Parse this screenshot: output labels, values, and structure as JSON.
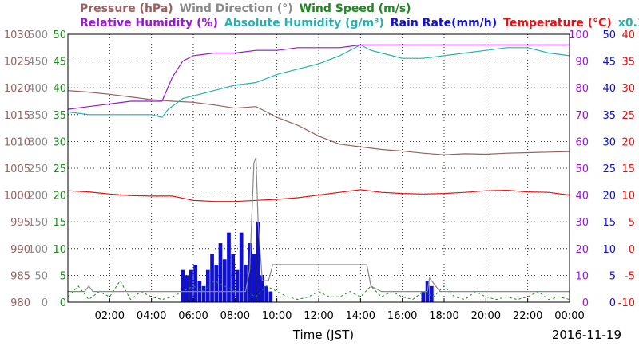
{
  "chart_data": {
    "type": "line",
    "title_lines": [
      [
        {
          "text": "Pressure (hPa)",
          "color": "#9b6060"
        },
        {
          "text": "Wind Direction (°)",
          "color": "#8a8a8a"
        },
        {
          "text": "Wind Speed (m/s)",
          "color": "#1f8a1f"
        }
      ],
      [
        {
          "text": "Relative Humidity (%)",
          "color": "#9a16d8"
        },
        {
          "text": "Absolute Humidity (g/m³)",
          "color": "#26b2b2"
        },
        {
          "text": "Rain Rate(mm/h)",
          "color": "#1010d0"
        },
        {
          "text": "Temperature (°C)",
          "color": "#e81010"
        },
        {
          "text": "x0.1",
          "color": "#26b2b2"
        }
      ]
    ],
    "xlabel": "Time (JST)",
    "date_label": "2016-11-19",
    "x_ticks": [
      "02:00",
      "04:00",
      "06:00",
      "08:00",
      "10:00",
      "12:00",
      "14:00",
      "16:00",
      "18:00",
      "20:00",
      "22:00",
      "00:00"
    ],
    "xlim_hours": [
      0,
      24
    ],
    "axes": [
      {
        "name": "Pressure (hPa)",
        "color": "#9b6060",
        "ticks": [
          980,
          985,
          990,
          995,
          1000,
          1005,
          1010,
          1015,
          1020,
          1025,
          1030
        ],
        "range": [
          980,
          1030
        ]
      },
      {
        "name": "Wind Direction (°)",
        "color": "#8a8a8a",
        "ticks": [
          0,
          50,
          100,
          150,
          200,
          250,
          300,
          350,
          400,
          450,
          500
        ],
        "range": [
          0,
          500
        ]
      },
      {
        "name": "Wind Speed (m/s)",
        "color": "#1f8a1f",
        "ticks": [
          0,
          5,
          10,
          15,
          20,
          25,
          30,
          35,
          40,
          45,
          50
        ],
        "range": [
          0,
          50
        ]
      },
      {
        "name": "Relative Humidity (%)",
        "color": "#9a16d8",
        "ticks": [
          0,
          10,
          20,
          30,
          40,
          50,
          60,
          70,
          80,
          90,
          100
        ],
        "range": [
          0,
          100
        ]
      },
      {
        "name": "Rain Rate(mm/h)",
        "color": "#1010d0",
        "ticks": [
          0,
          5,
          10,
          15,
          20,
          25,
          30,
          35,
          40,
          45,
          50
        ],
        "range": [
          0,
          50
        ]
      },
      {
        "name": "Temperature (°C)",
        "color": "#e81010",
        "ticks": [
          -10,
          -5,
          0,
          5,
          10,
          15,
          20,
          25,
          30,
          35,
          40
        ],
        "range": [
          -10,
          40
        ]
      }
    ],
    "grid": true,
    "series": [
      {
        "name": "Pressure (hPa)",
        "color": "#9b6060",
        "axis": 0,
        "style": "line",
        "x": [
          0,
          1,
          2,
          3,
          4,
          5,
          6,
          7,
          8,
          9,
          9.5,
          10,
          11,
          12,
          13,
          14,
          15,
          16,
          17,
          18,
          19,
          20,
          21,
          22,
          23,
          24
        ],
        "y": [
          1019.5,
          1019.2,
          1018.8,
          1018.3,
          1017.8,
          1017.5,
          1017.3,
          1016.8,
          1016.2,
          1016.5,
          1015.5,
          1014.5,
          1013,
          1011,
          1009.5,
          1009,
          1008.5,
          1008.2,
          1007.8,
          1007.5,
          1007.7,
          1007.6,
          1007.8,
          1007.9,
          1008,
          1008.1
        ]
      },
      {
        "name": "Absolute Humidity (g/m³)",
        "color": "#26b2b2",
        "axis": 3,
        "style": "line",
        "x": [
          0,
          1,
          2,
          3,
          4,
          4.5,
          4.8,
          5.5,
          6,
          7,
          8,
          9,
          10,
          11,
          12,
          13,
          14,
          14.5,
          15,
          16,
          17,
          18,
          19,
          20,
          21,
          22,
          23,
          24
        ],
        "y": [
          71,
          70,
          70,
          70,
          70,
          69,
          72,
          76,
          77,
          79,
          81,
          82,
          85,
          87,
          89,
          92,
          96,
          94,
          93,
          91,
          91,
          92,
          93,
          94,
          95,
          95,
          93,
          92
        ]
      },
      {
        "name": "Relative Humidity (%)",
        "color": "#9a16d8",
        "axis": 3,
        "style": "line",
        "x": [
          0,
          1,
          2,
          3,
          4,
          4.5,
          5,
          5.5,
          6,
          7,
          8,
          9,
          10,
          11,
          12,
          13,
          14,
          15,
          16,
          17,
          18,
          19,
          20,
          21,
          22,
          23,
          24
        ],
        "y": [
          72,
          73,
          74,
          75,
          75,
          75,
          84,
          90,
          92,
          93,
          93,
          94,
          94,
          95,
          95,
          95,
          96,
          96,
          96,
          96,
          96,
          96,
          96,
          96,
          96,
          96,
          96
        ]
      },
      {
        "name": "Temperature (°C)",
        "color": "#e81010",
        "axis": 5,
        "style": "line",
        "x": [
          0,
          1,
          2,
          3,
          4,
          5,
          6,
          7,
          8,
          9,
          10,
          11,
          12,
          13,
          14,
          15,
          16,
          17,
          18,
          19,
          20,
          21,
          22,
          23,
          24
        ],
        "y": [
          10.8,
          10.6,
          10.2,
          9.9,
          9.8,
          9.8,
          9,
          8.8,
          8.8,
          9,
          9.2,
          9.5,
          10,
          10.5,
          11,
          10.5,
          10.3,
          10.2,
          10.3,
          10.5,
          10.8,
          10.9,
          10.6,
          10.5,
          10
        ]
      },
      {
        "name": "Wind Direction (°)",
        "color": "#8a8a8a",
        "axis": 1,
        "style": "line",
        "x": [
          0,
          0.8,
          1,
          1.2,
          2,
          4,
          5.6,
          6,
          7,
          7.5,
          8,
          8.5,
          8.7,
          8.9,
          9,
          9.1,
          9.3,
          9.6,
          9.8,
          10,
          12,
          14,
          14.3,
          14.5,
          15,
          16,
          17.2,
          17.3,
          17.8,
          18,
          20,
          22,
          24
        ],
        "y": [
          20,
          20,
          30,
          20,
          20,
          20,
          20,
          20,
          20,
          20,
          20,
          20,
          60,
          260,
          270,
          150,
          40,
          40,
          70,
          70,
          70,
          70,
          70,
          30,
          20,
          20,
          20,
          45,
          20,
          20,
          20,
          20,
          20
        ]
      },
      {
        "name": "Wind Speed (m/s)",
        "color": "#1f8a1f",
        "axis": 2,
        "style": "dash",
        "x": [
          0,
          0.5,
          1,
          1.5,
          2,
          2.5,
          3,
          3.5,
          4,
          4.5,
          5,
          5.5,
          6,
          6.5,
          7,
          7.5,
          8,
          8.5,
          9,
          9.5,
          10,
          10.5,
          11,
          11.5,
          12,
          12.5,
          13,
          13.5,
          14,
          14.5,
          15,
          15.5,
          16,
          16.5,
          17,
          17.5,
          18,
          18.5,
          19,
          19.5,
          20,
          20.5,
          21,
          21.5,
          22,
          22.5,
          23,
          23.5,
          24
        ],
        "y": [
          1,
          3,
          0.5,
          2,
          1,
          4,
          0.5,
          2,
          1,
          0.5,
          1,
          2,
          3,
          2,
          4,
          3,
          2,
          2,
          1,
          3,
          2,
          1,
          0.5,
          1,
          2,
          1,
          1,
          2,
          1,
          3,
          1,
          2,
          1,
          0.5,
          2,
          1,
          3,
          1,
          0.5,
          2,
          1,
          0.5,
          1,
          0.5,
          1,
          2,
          0.5,
          1,
          0.5
        ]
      },
      {
        "name": "Rain Rate(mm/h)",
        "color": "#1010d0",
        "axis": 4,
        "style": "bars",
        "x": [
          5.5,
          5.7,
          5.9,
          6.1,
          6.3,
          6.5,
          6.7,
          6.9,
          7.1,
          7.3,
          7.5,
          7.7,
          7.9,
          8.1,
          8.3,
          8.5,
          8.7,
          8.9,
          9.1,
          9.3,
          9.5,
          9.7,
          17.0,
          17.2,
          17.4
        ],
        "y": [
          6,
          5,
          6,
          7,
          4,
          3,
          6,
          9,
          7,
          11,
          8,
          13,
          9,
          6,
          13,
          7,
          11,
          9,
          15,
          5,
          3,
          2,
          2,
          4,
          3
        ]
      }
    ]
  }
}
